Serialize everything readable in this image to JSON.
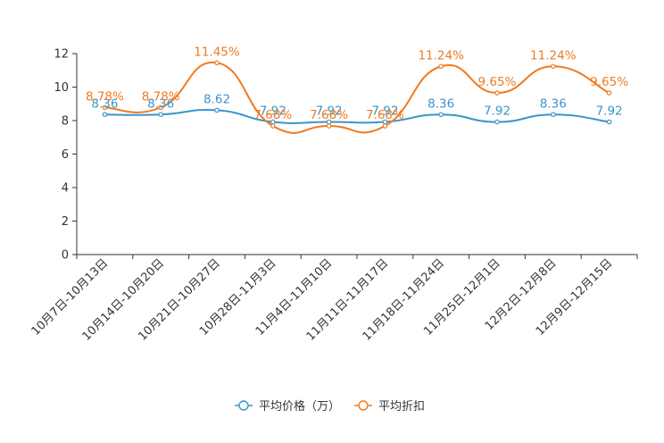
{
  "chart_data": {
    "type": "line",
    "title": "",
    "xlabel": "",
    "ylabel": "",
    "ylim": [
      0,
      12
    ],
    "yticks": [
      0,
      2,
      4,
      6,
      8,
      10,
      12
    ],
    "grid": false,
    "smooth": true,
    "legend_position": "bottom-center",
    "categories": [
      "10月7日-10月13日",
      "10月14日-10月20日",
      "10月21日-10月27日",
      "10月28日-11月3日",
      "11月4日-11月10日",
      "11月11日-11月17日",
      "11月18日-11月24日",
      "11月25日-12月1日",
      "12月2日-12月8日",
      "12月9日-12月15日"
    ],
    "series": [
      {
        "name": "平均价格（万）",
        "color": "#3a95c8",
        "values": [
          8.36,
          8.36,
          8.62,
          7.92,
          7.92,
          7.92,
          8.36,
          7.92,
          8.36,
          7.92
        ],
        "labels": [
          "8.36",
          "8.36",
          "8.62",
          "7.92",
          "7.92",
          "7.92",
          "8.36",
          "7.92",
          "8.36",
          "7.92"
        ]
      },
      {
        "name": "平均折扣",
        "color": "#f07a1e",
        "values": [
          8.78,
          8.78,
          11.45,
          7.68,
          7.68,
          7.68,
          11.24,
          9.65,
          11.24,
          9.65
        ],
        "labels": [
          "8.78%",
          "8.78%",
          "11.45%",
          "7.68%",
          "7.68%",
          "7.68%",
          "11.24%",
          "9.65%",
          "11.24%",
          "9.65%"
        ]
      }
    ]
  }
}
